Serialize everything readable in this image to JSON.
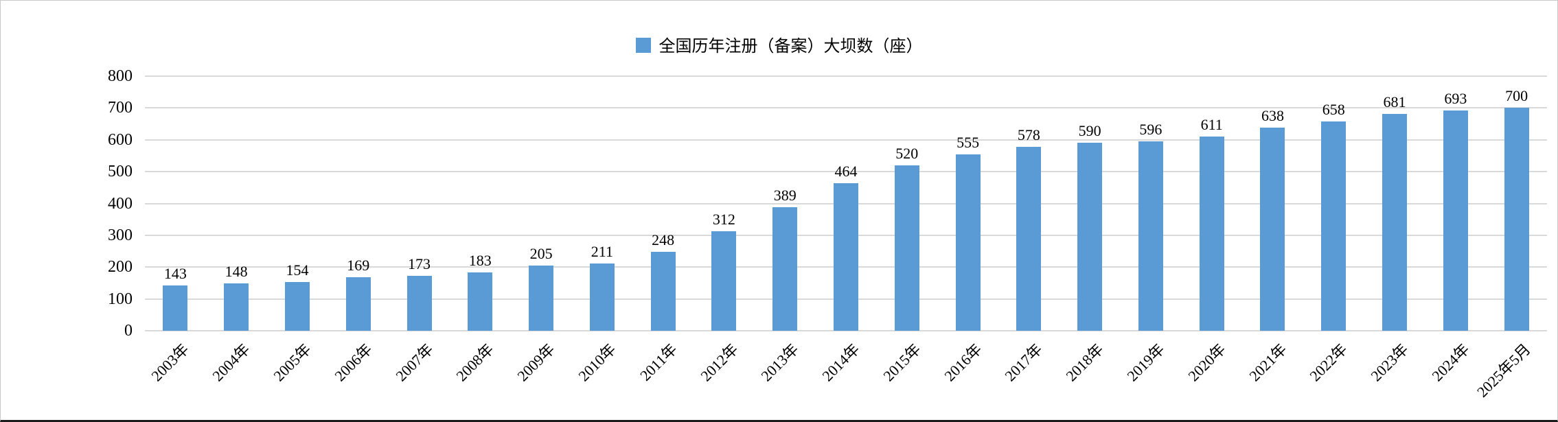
{
  "chart_data": {
    "type": "bar",
    "legend": "全国历年注册（备案）大坝数（座）",
    "categories": [
      "2003年",
      "2004年",
      "2005年",
      "2006年",
      "2007年",
      "2008年",
      "2009年",
      "2010年",
      "2011年",
      "2012年",
      "2013年",
      "2014年",
      "2015年",
      "2016年",
      "2017年",
      "2018年",
      "2019年",
      "2020年",
      "2021年",
      "2022年",
      "2023年",
      "2024年",
      "2025年5月"
    ],
    "values": [
      143,
      148,
      154,
      169,
      173,
      183,
      205,
      211,
      248,
      312,
      389,
      464,
      520,
      555,
      578,
      590,
      596,
      611,
      638,
      658,
      681,
      693,
      700
    ],
    "title": "",
    "xlabel": "",
    "ylabel": "",
    "ylim": [
      0,
      800
    ],
    "yticks": [
      0,
      100,
      200,
      300,
      400,
      500,
      600,
      700,
      800
    ],
    "grid": true,
    "legend_position": "top-center",
    "data_labels": true,
    "colors": {
      "bar": "#5B9BD5",
      "gridline": "#D9D9D9",
      "text": "#000000",
      "background": "#FFFFFF"
    }
  }
}
